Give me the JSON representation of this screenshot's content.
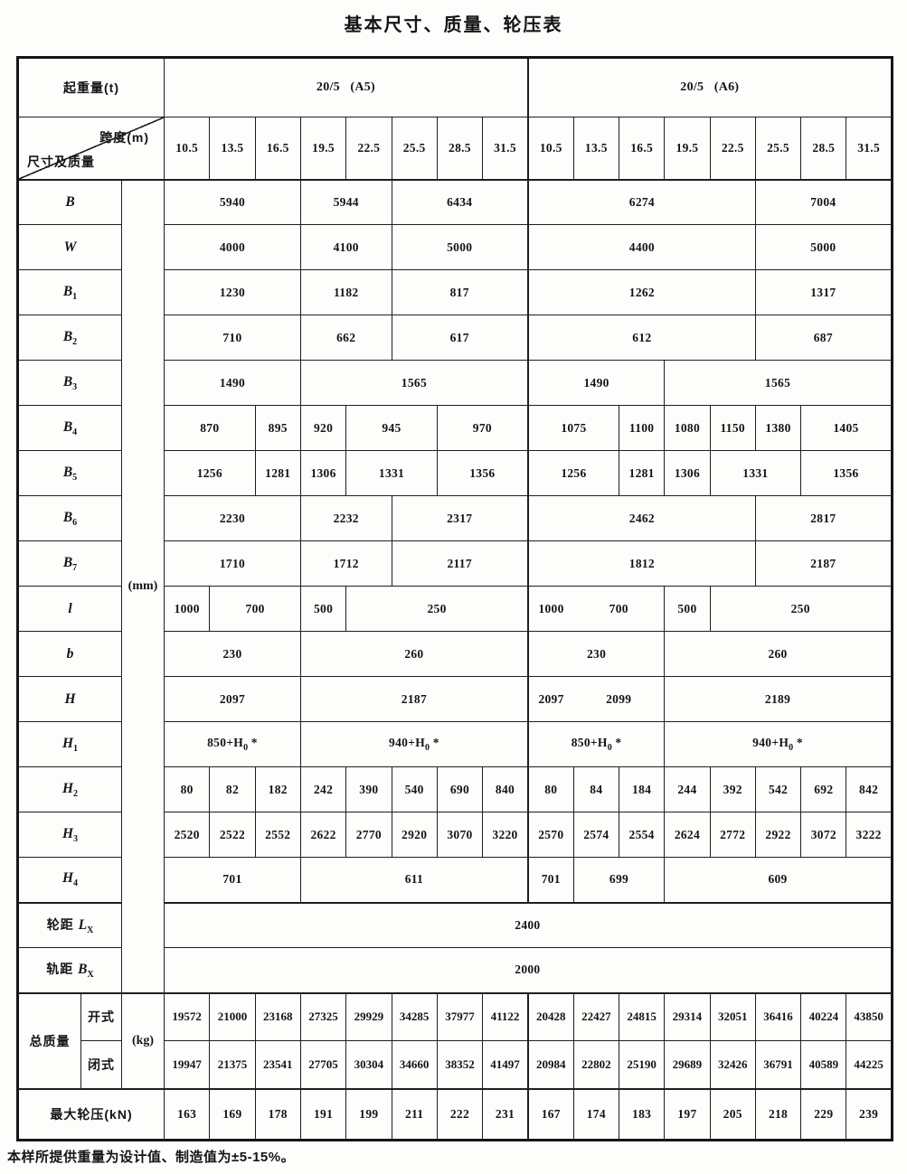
{
  "title": "基本尺寸、质量、轮压表",
  "footnote": "本样所提供重量为设计值、制造值为±5-15%。",
  "header": {
    "capacity_label": "起重量(t)",
    "groups": [
      {
        "label": "20/5   (A5)"
      },
      {
        "label": "20/5   (A6)"
      }
    ],
    "span_label": "跨度(m)",
    "dim_label": "尺寸及质量",
    "spans": [
      "10.5",
      "13.5",
      "16.5",
      "19.5",
      "22.5",
      "25.5",
      "28.5",
      "31.5",
      "10.5",
      "13.5",
      "16.5",
      "19.5",
      "22.5",
      "25.5",
      "28.5",
      "31.5"
    ]
  },
  "units": {
    "mm": "(mm)",
    "kg": "(kg)"
  },
  "rows": [
    {
      "name": "B",
      "label": {
        "base": "B"
      },
      "cells": [
        {
          "v": "5940",
          "s": 3
        },
        {
          "v": "5944",
          "s": 2
        },
        {
          "v": "6434",
          "s": 3
        },
        {
          "v": "6274",
          "s": 5
        },
        {
          "v": "7004",
          "s": 3
        }
      ]
    },
    {
      "name": "W",
      "label": {
        "base": "W"
      },
      "cells": [
        {
          "v": "4000",
          "s": 3
        },
        {
          "v": "4100",
          "s": 2
        },
        {
          "v": "5000",
          "s": 3
        },
        {
          "v": "4400",
          "s": 5
        },
        {
          "v": "5000",
          "s": 3
        }
      ]
    },
    {
      "name": "B1",
      "label": {
        "base": "B",
        "sub": "1"
      },
      "cells": [
        {
          "v": "1230",
          "s": 3
        },
        {
          "v": "1182",
          "s": 2
        },
        {
          "v": "817",
          "s": 3
        },
        {
          "v": "1262",
          "s": 5
        },
        {
          "v": "1317",
          "s": 3
        }
      ]
    },
    {
      "name": "B2",
      "label": {
        "base": "B",
        "sub": "2"
      },
      "cells": [
        {
          "v": "710",
          "s": 3
        },
        {
          "v": "662",
          "s": 2
        },
        {
          "v": "617",
          "s": 3
        },
        {
          "v": "612",
          "s": 5
        },
        {
          "v": "687",
          "s": 3
        }
      ]
    },
    {
      "name": "B3",
      "label": {
        "base": "B",
        "sub": "3"
      },
      "cells": [
        {
          "v": "1490",
          "s": 3
        },
        {
          "v": "1565",
          "s": 5
        },
        {
          "v": "1490",
          "s": 3
        },
        {
          "v": "1565",
          "s": 5
        }
      ]
    },
    {
      "name": "B4",
      "label": {
        "base": "B",
        "sub": "4"
      },
      "cells": [
        {
          "v": "870",
          "s": 2
        },
        {
          "v": "895",
          "s": 1
        },
        {
          "v": "920",
          "s": 1
        },
        {
          "v": "945",
          "s": 2
        },
        {
          "v": "970",
          "s": 2
        },
        {
          "v": "1075",
          "s": 2
        },
        {
          "v": "1100",
          "s": 1
        },
        {
          "v": "1080",
          "s": 1
        },
        {
          "v": "1150",
          "s": 1
        },
        {
          "v": "1380",
          "s": 1
        },
        {
          "v": "1405",
          "s": 2
        }
      ]
    },
    {
      "name": "B5",
      "label": {
        "base": "B",
        "sub": "5"
      },
      "cells": [
        {
          "v": "1256",
          "s": 2
        },
        {
          "v": "1281",
          "s": 1
        },
        {
          "v": "1306",
          "s": 1
        },
        {
          "v": "1331",
          "s": 2
        },
        {
          "v": "1356",
          "s": 2
        },
        {
          "v": "1256",
          "s": 2
        },
        {
          "v": "1281",
          "s": 1
        },
        {
          "v": "1306",
          "s": 1
        },
        {
          "v": "1331",
          "s": 2
        },
        {
          "v": "1356",
          "s": 2
        }
      ]
    },
    {
      "name": "B6",
      "label": {
        "base": "B",
        "sub": "6"
      },
      "cells": [
        {
          "v": "2230",
          "s": 3
        },
        {
          "v": "2232",
          "s": 2
        },
        {
          "v": "2317",
          "s": 3
        },
        {
          "v": "2462",
          "s": 5
        },
        {
          "v": "2817",
          "s": 3
        }
      ]
    },
    {
      "name": "B7",
      "label": {
        "base": "B",
        "sub": "7"
      },
      "cells": [
        {
          "v": "1710",
          "s": 3
        },
        {
          "v": "1712",
          "s": 2
        },
        {
          "v": "2117",
          "s": 3
        },
        {
          "v": "1812",
          "s": 5
        },
        {
          "v": "2187",
          "s": 3
        }
      ]
    },
    {
      "name": "l",
      "label": {
        "base": "l"
      },
      "cells": [
        {
          "v": "1000",
          "s": 1
        },
        {
          "v": "700",
          "s": 2
        },
        {
          "v": "500",
          "s": 1
        },
        {
          "v": "250",
          "s": 4
        },
        {
          "v": "1000",
          "s": 1,
          "nb": true
        },
        {
          "v": "700",
          "s": 2
        },
        {
          "v": "500",
          "s": 1
        },
        {
          "v": "250",
          "s": 4
        }
      ]
    },
    {
      "name": "b",
      "label": {
        "base": "b"
      },
      "cells": [
        {
          "v": "230",
          "s": 3
        },
        {
          "v": "260",
          "s": 5
        },
        {
          "v": "230",
          "s": 3
        },
        {
          "v": "260",
          "s": 5
        }
      ]
    },
    {
      "name": "H",
      "label": {
        "base": "H"
      },
      "cells": [
        {
          "v": "2097",
          "s": 3
        },
        {
          "v": "2187",
          "s": 5
        },
        {
          "v": "2097",
          "s": 1,
          "nb": true
        },
        {
          "v": "2099",
          "s": 2
        },
        {
          "v": "2189",
          "s": 5
        }
      ]
    },
    {
      "name": "H1",
      "label": {
        "base": "H",
        "sub": "1"
      },
      "cells": [
        {
          "pre": "850+",
          "base": "H",
          "sub": "0",
          "post": " *",
          "s": 3
        },
        {
          "pre": "940+",
          "base": "H",
          "sub": "0",
          "post": " *",
          "s": 5
        },
        {
          "pre": "850+",
          "base": "H",
          "sub": "0",
          "post": " *",
          "s": 3
        },
        {
          "pre": "940+",
          "base": "H",
          "sub": "0",
          "post": " *",
          "s": 5
        }
      ]
    },
    {
      "name": "H2",
      "label": {
        "base": "H",
        "sub": "2"
      },
      "cells": [
        {
          "v": "80",
          "s": 1
        },
        {
          "v": "82",
          "s": 1
        },
        {
          "v": "182",
          "s": 1
        },
        {
          "v": "242",
          "s": 1
        },
        {
          "v": "390",
          "s": 1
        },
        {
          "v": "540",
          "s": 1
        },
        {
          "v": "690",
          "s": 1
        },
        {
          "v": "840",
          "s": 1
        },
        {
          "v": "80",
          "s": 1
        },
        {
          "v": "84",
          "s": 1
        },
        {
          "v": "184",
          "s": 1
        },
        {
          "v": "244",
          "s": 1
        },
        {
          "v": "392",
          "s": 1
        },
        {
          "v": "542",
          "s": 1
        },
        {
          "v": "692",
          "s": 1
        },
        {
          "v": "842",
          "s": 1
        }
      ]
    },
    {
      "name": "H3",
      "label": {
        "base": "H",
        "sub": "3"
      },
      "cells": [
        {
          "v": "2520",
          "s": 1
        },
        {
          "v": "2522",
          "s": 1
        },
        {
          "v": "2552",
          "s": 1
        },
        {
          "v": "2622",
          "s": 1
        },
        {
          "v": "2770",
          "s": 1
        },
        {
          "v": "2920",
          "s": 1
        },
        {
          "v": "3070",
          "s": 1
        },
        {
          "v": "3220",
          "s": 1
        },
        {
          "v": "2570",
          "s": 1
        },
        {
          "v": "2574",
          "s": 1
        },
        {
          "v": "2554",
          "s": 1
        },
        {
          "v": "2624",
          "s": 1
        },
        {
          "v": "2772",
          "s": 1
        },
        {
          "v": "2922",
          "s": 1
        },
        {
          "v": "3072",
          "s": 1
        },
        {
          "v": "3222",
          "s": 1
        }
      ]
    },
    {
      "name": "H4",
      "label": {
        "base": "H",
        "sub": "4"
      },
      "cells": [
        {
          "v": "701",
          "s": 3
        },
        {
          "v": "611",
          "s": 5
        },
        {
          "v": "701",
          "s": 1
        },
        {
          "v": "699",
          "s": 2
        },
        {
          "v": "609",
          "s": 5
        }
      ]
    },
    {
      "name": "wheelbase-Lx",
      "label": {
        "pre": "轮距 ",
        "base": "L",
        "sub": "X"
      },
      "cells": [
        {
          "v": "2400",
          "s": 16
        }
      ]
    },
    {
      "name": "gauge-Bx",
      "label": {
        "pre": "轨距 ",
        "base": "B",
        "sub": "X"
      },
      "cells": [
        {
          "v": "2000",
          "s": 16
        }
      ]
    }
  ],
  "mass": {
    "label": "总质量",
    "open_label": "开式",
    "closed_label": "闭式",
    "open_values": [
      "19572",
      "21000",
      "23168",
      "27325",
      "29929",
      "34285",
      "37977",
      "41122",
      "20428",
      "22427",
      "24815",
      "29314",
      "32051",
      "36416",
      "40224",
      "43850"
    ],
    "closed_values": [
      "19947",
      "21375",
      "23541",
      "27705",
      "30304",
      "34660",
      "38352",
      "41497",
      "20984",
      "22802",
      "25190",
      "29689",
      "32426",
      "36791",
      "40589",
      "44225"
    ]
  },
  "wheel_pressure": {
    "label": "最大轮压(kN)",
    "values": [
      "163",
      "169",
      "178",
      "191",
      "199",
      "211",
      "222",
      "231",
      "167",
      "174",
      "183",
      "197",
      "205",
      "218",
      "229",
      "239"
    ]
  }
}
